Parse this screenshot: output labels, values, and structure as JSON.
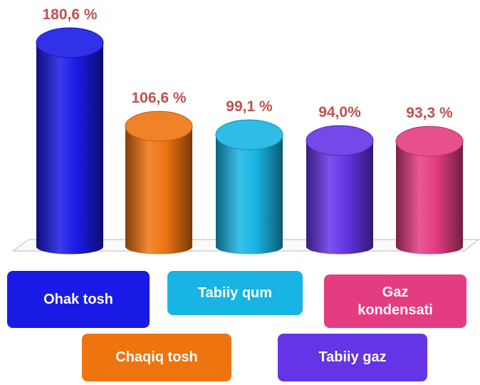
{
  "chart_data": {
    "type": "bar",
    "categories": [
      "Ohak tosh",
      "Chaqiq tosh",
      "Tabiiy qum",
      "Tabiiy gaz",
      "Gaz kondensati"
    ],
    "values": [
      180.6,
      106.6,
      99.1,
      94.0,
      93.3
    ],
    "value_labels": [
      "180,6 %",
      "106,6 %",
      "99,1 %",
      "94,0%",
      "93,3 %"
    ],
    "colors": [
      "#1a1ae6",
      "#ee7410",
      "#18b4e4",
      "#6434e6",
      "#e43c80"
    ]
  }
}
